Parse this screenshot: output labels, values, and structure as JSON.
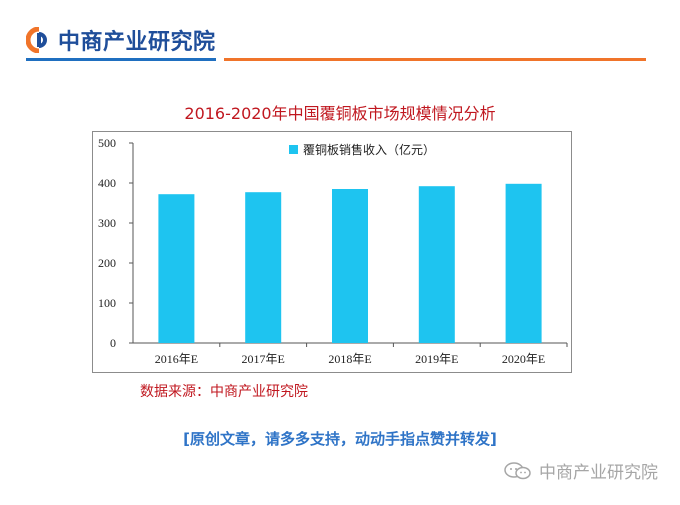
{
  "header": {
    "brand_name": "中商产业研究院",
    "brand_colors": {
      "blue": "#1f4e9a",
      "orange": "#f0742a"
    }
  },
  "chart_data": {
    "type": "bar",
    "title": "2016-2020年中国覆铜板市场规模情况分析",
    "categories": [
      "2016年E",
      "2017年E",
      "2018年E",
      "2019年E",
      "2020年E"
    ],
    "series": [
      {
        "name": "覆铜板销售收入（亿元）",
        "values": [
          372,
          377,
          385,
          392,
          398
        ],
        "color": "#1ec4f0"
      }
    ],
    "y_ticks": [
      "0",
      "100",
      "200",
      "300",
      "400",
      "500"
    ],
    "ylim": [
      0,
      500
    ],
    "grid": false,
    "legend_position": "top-center"
  },
  "footer": {
    "source": "数据来源：中商产业研究院",
    "slogan": "[原创文章，请多多支持，动动手指点赞并转发]",
    "watermark": "中商产业研究院",
    "watermark_icon": "wechat-icon"
  }
}
